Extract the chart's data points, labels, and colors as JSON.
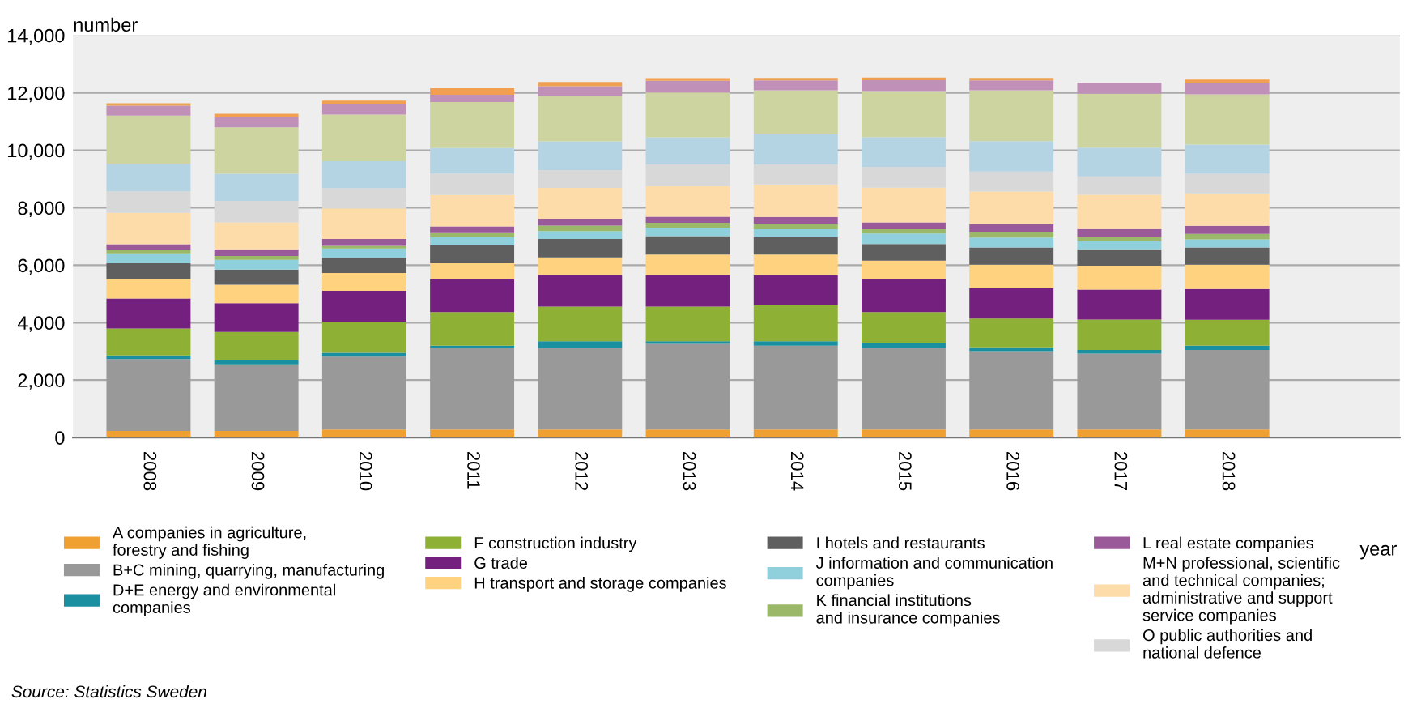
{
  "chart_data": {
    "type": "bar",
    "stacked": true,
    "xlabel": "year",
    "ylabel": "number",
    "categories": [
      "2008",
      "2009",
      "2010",
      "2011",
      "2012",
      "2013",
      "2014",
      "2015",
      "2016",
      "2017",
      "2018"
    ],
    "series": [
      {
        "name": "A companies in agriculture,\nforestry and fishing",
        "color": "#f0a030",
        "values": [
          230,
          230,
          280,
          280,
          280,
          280,
          280,
          280,
          280,
          280,
          280
        ]
      },
      {
        "name": "B+C mining, quarrying, manufacturing",
        "color": "#999999",
        "values": [
          2500,
          2320,
          2540,
          2830,
          2830,
          2980,
          2920,
          2830,
          2730,
          2640,
          2770
        ]
      },
      {
        "name": "D+E energy and environmental\ncompanies",
        "color": "#1a8fa0",
        "values": [
          130,
          130,
          130,
          90,
          240,
          90,
          150,
          190,
          130,
          130,
          150
        ]
      },
      {
        "name": "F construction industry",
        "color": "#8db035",
        "values": [
          940,
          1000,
          1090,
          1170,
          1210,
          1210,
          1260,
          1070,
          1000,
          1060,
          900
        ]
      },
      {
        "name": "G trade",
        "color": "#74207e",
        "values": [
          1040,
          1000,
          1070,
          1130,
          1090,
          1090,
          1040,
          1130,
          1070,
          1040,
          1070
        ]
      },
      {
        "name": "H transport and storage companies",
        "color": "#ffd27f",
        "values": [
          680,
          640,
          620,
          570,
          620,
          720,
          720,
          660,
          810,
          830,
          850
        ]
      },
      {
        "name": "I hotels and restaurants",
        "color": "#5f5f5f",
        "values": [
          550,
          530,
          530,
          620,
          640,
          640,
          600,
          580,
          600,
          570,
          600
        ]
      },
      {
        "name": "J information and communication\ncompanies",
        "color": "#8fd0dc",
        "values": [
          340,
          340,
          320,
          280,
          280,
          300,
          280,
          360,
          340,
          280,
          280
        ]
      },
      {
        "name": "K financial institutions\nand insurance companies",
        "color": "#9ab868",
        "values": [
          130,
          130,
          90,
          150,
          190,
          170,
          190,
          150,
          190,
          150,
          190
        ]
      },
      {
        "name": "L real estate companies",
        "color": "#9a5a9a",
        "values": [
          190,
          230,
          240,
          230,
          240,
          210,
          240,
          240,
          280,
          280,
          280
        ]
      },
      {
        "name": "M+N professional, scientific\nand technical companies;\nadministrative and support\nservice companies",
        "color": "#fddcaa",
        "values": [
          1090,
          940,
          1070,
          1090,
          1070,
          1070,
          1130,
          1210,
          1130,
          1190,
          1130
        ]
      },
      {
        "name": "O public authorities and\nnational defence",
        "color": "#d8d8d8",
        "values": [
          750,
          750,
          700,
          750,
          620,
          750,
          700,
          720,
          700,
          640,
          680
        ]
      },
      {
        "color": "#b4d4e4",
        "values": [
          940,
          940,
          940,
          890,
          1000,
          940,
          1040,
          1040,
          1060,
          1000,
          1020
        ]
      },
      {
        "color": "#cdd4a0",
        "values": [
          1700,
          1620,
          1620,
          1600,
          1580,
          1560,
          1540,
          1600,
          1770,
          1880,
          1750
        ]
      },
      {
        "color": "#c090b8",
        "values": [
          340,
          360,
          380,
          250,
          340,
          410,
          340,
          380,
          340,
          380,
          380
        ]
      },
      {
        "color": "#f0a050",
        "values": [
          90,
          110,
          110,
          230,
          150,
          90,
          90,
          90,
          90,
          null,
          130
        ]
      }
    ],
    "ylim": [
      0,
      14000
    ],
    "yticks": [
      {
        "value": 0,
        "label": "0"
      },
      {
        "value": 2000,
        "label": "2,000"
      },
      {
        "value": 4000,
        "label": "4,000"
      },
      {
        "value": 6000,
        "label": "6,000"
      },
      {
        "value": 8000,
        "label": "8,000"
      },
      {
        "value": 10000,
        "label": "10,000"
      },
      {
        "value": 12000,
        "label": "12,000"
      },
      {
        "value": 14000,
        "label": "14,000"
      }
    ],
    "grid": "y",
    "legend": "bottom",
    "annotations": [
      "Source: Statistics Sweden"
    ]
  }
}
